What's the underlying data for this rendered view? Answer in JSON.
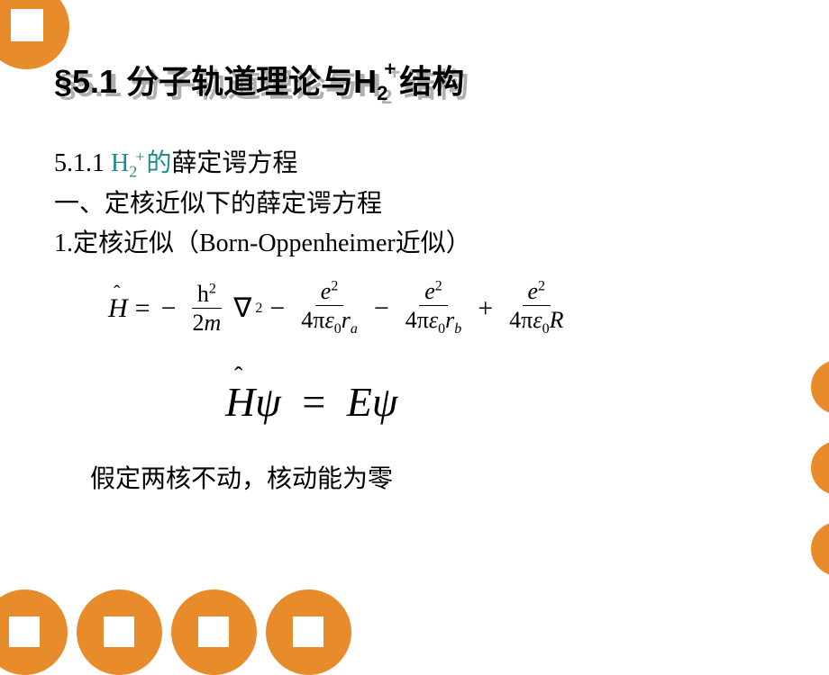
{
  "colors": {
    "accent": "#e88c2b",
    "teal": "#1e8c8c",
    "shadow": "#b0b0b0",
    "text": "#000000",
    "bg": "#ffffff"
  },
  "title": {
    "prefix": "§5.1 ",
    "cn1": "分子轨道理论与",
    "molecule": "H",
    "sub": "2",
    "sup": "+",
    "cn2": "结构"
  },
  "line1": {
    "num": "5.1.1   ",
    "teal_h": "H",
    "teal_sub": "2",
    "teal_sup": "+",
    "teal_de": "的",
    "rest": "薛定谔方程"
  },
  "line2": "一、定核近似下的薛定谔方程",
  "line3": "1.定核近似（Born-Oppenheimer近似）",
  "eq1": {
    "lhs": "H",
    "eq": "=",
    "minus": "−",
    "plus": "+",
    "nabla": "∇",
    "frac1_num_h": "h",
    "frac1_num_sup": "2",
    "frac1_den_2": "2",
    "frac1_den_m": "m",
    "frac_e": "e",
    "frac_e_sup": "2",
    "den_4pi": "4π",
    "eps": "ε",
    "eps_sub": "0",
    "r": "r",
    "ra": "a",
    "rb": "b",
    "R": "R",
    "nabla_sup": "2"
  },
  "eq2": {
    "H": "H",
    "psi": "ψ",
    "eq": "=",
    "E": "E"
  },
  "note": "假定两核不动，核动能为零"
}
